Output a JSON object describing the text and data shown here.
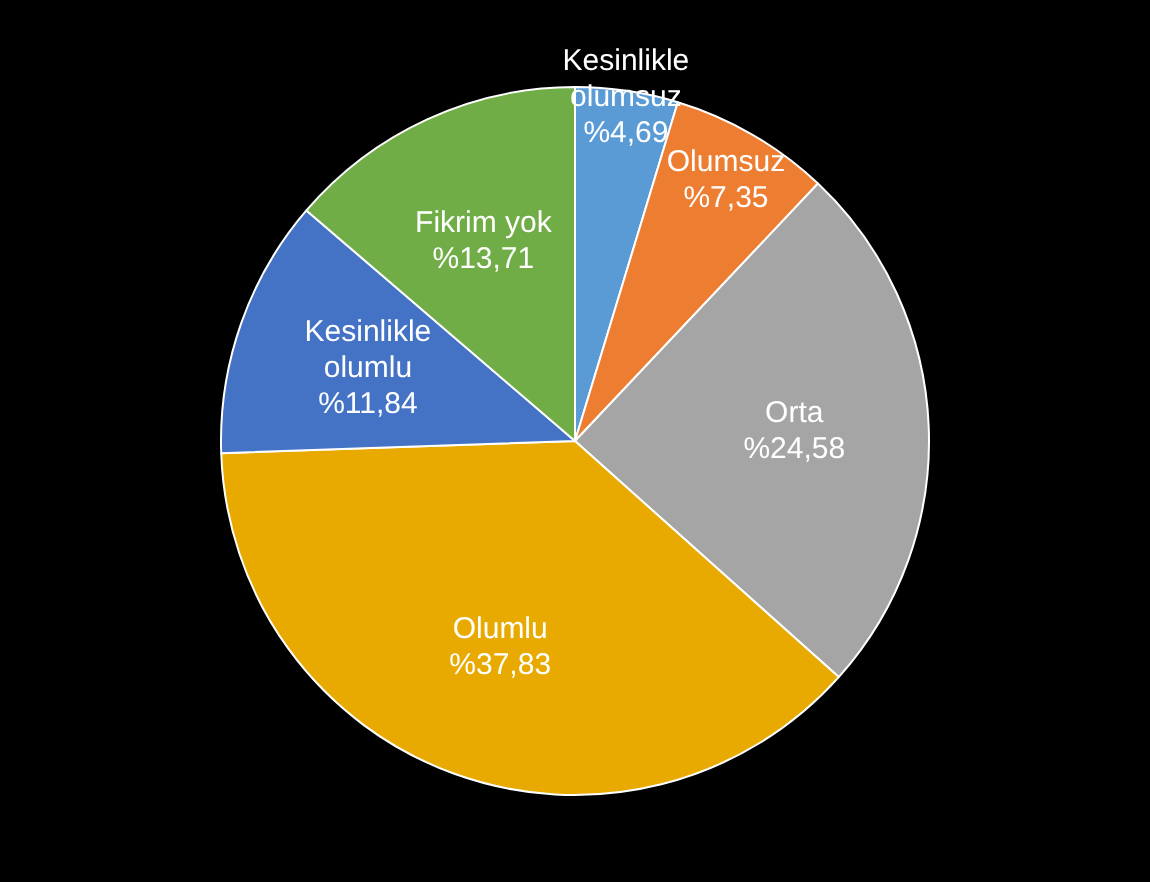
{
  "chart_data": {
    "type": "pie",
    "categories": [
      "Kesinlikle olumsuz",
      "Olumsuz",
      "Orta",
      "Olumlu",
      "Kesinlikle olumlu",
      "Fikrim yok"
    ],
    "values": [
      4.69,
      7.35,
      24.58,
      37.83,
      11.84,
      13.71
    ],
    "value_labels": [
      "%4,69",
      "%7,35",
      "%24,58",
      "%37,83",
      "%11,84",
      "%13,71"
    ],
    "colors": [
      "#5b9bd5",
      "#ed7d31",
      "#a5a5a5",
      "#e8aa00",
      "#4472c4",
      "#70ad47"
    ],
    "legend": false
  }
}
